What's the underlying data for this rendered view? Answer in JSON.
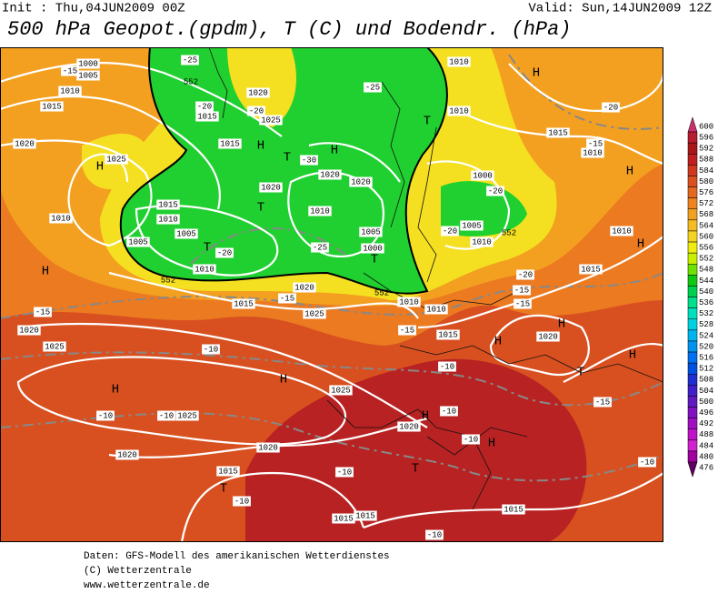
{
  "header": {
    "init": "Init : Thu,04JUN2009 00Z",
    "valid": "Valid: Sun,14JUN2009 12Z",
    "title": "500 hPa Geopot.(gpdm), T (C) und Bodendr. (hPa)"
  },
  "map": {
    "labels": [
      "H",
      "H",
      "H",
      "H",
      "H",
      "H",
      "H",
      "H",
      "H",
      "H",
      "H",
      "H",
      "H",
      "H",
      "T",
      "T",
      "T",
      "T",
      "T",
      "T",
      "T",
      "T",
      "1000",
      "1005",
      "1010",
      "1015",
      "1020",
      "1025",
      "1015",
      "1025",
      "1020",
      "1015",
      "1020",
      "1015",
      "1010",
      "1005",
      "1005",
      "1010",
      "1015",
      "1020",
      "1025",
      "1020",
      "1020",
      "1010",
      "1005",
      "1000",
      "1010",
      "1010",
      "1015",
      "1010",
      "1000",
      "1005",
      "1010",
      "1010",
      "1015",
      "1010",
      "1010",
      "1015",
      "1020",
      "1020",
      "1025",
      "1025",
      "1025",
      "1020",
      "1020",
      "1020",
      "1015",
      "1015",
      "1015",
      "1015",
      "1010",
      "-25",
      "-25",
      "-20",
      "-20",
      "-30",
      "-20",
      "-25",
      "-20",
      "-20",
      "-20",
      "-15",
      "-15",
      "-15",
      "-15",
      "-15",
      "-15",
      "-20",
      "-15",
      "-10",
      "-10",
      "-10",
      "-10",
      "-10",
      "-10",
      "-10",
      "-10",
      "-10",
      "-10",
      "-15",
      "552",
      "552",
      "552",
      "552"
    ]
  },
  "legend": {
    "levels": [
      600,
      596,
      592,
      588,
      584,
      580,
      576,
      572,
      568,
      564,
      560,
      556,
      552,
      548,
      544,
      540,
      536,
      532,
      528,
      524,
      520,
      516,
      512,
      508,
      504,
      500,
      496,
      492,
      488,
      484,
      480,
      476
    ],
    "colors": [
      "#c8306e",
      "#b81c30",
      "#a81818",
      "#c02020",
      "#d03820",
      "#dc5020",
      "#e66820",
      "#ee8420",
      "#f2a020",
      "#f4bc20",
      "#f4d420",
      "#f0ec10",
      "#c8f000",
      "#70e000",
      "#10c810",
      "#00d050",
      "#00e08c",
      "#00e0c0",
      "#00d0e0",
      "#00b4f0",
      "#0094f0",
      "#0070f0",
      "#0050e0",
      "#2030d0",
      "#4020c8",
      "#6018c0",
      "#8010c0",
      "#a010c0",
      "#c010c8",
      "#d020d0",
      "#a000a0",
      "#600060"
    ]
  },
  "footer": [
    "Daten: GFS-Modell des amerikanischen Wetterdienstes",
    "(C) Wetterzentrale",
    "www.wetterzentrale.de"
  ]
}
